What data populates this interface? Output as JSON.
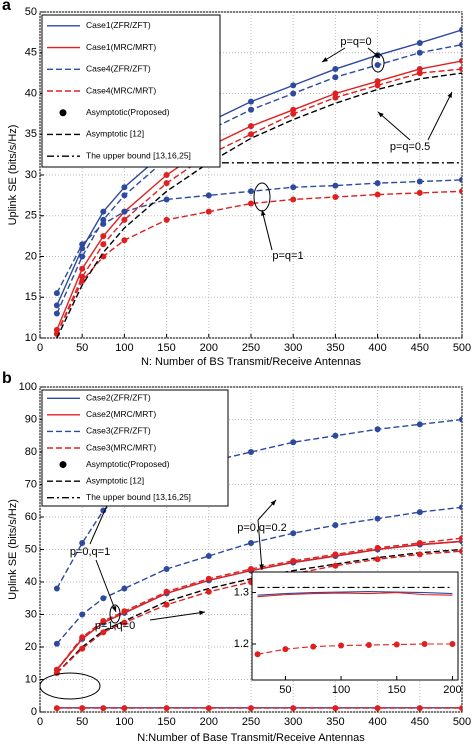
{
  "chart_data": [
    {
      "type": "line",
      "panel_label": "a",
      "xlabel": "N: Number of BS Transmit/Receive Antennas",
      "ylabel": "Uplink SE (bits/s/Hz)",
      "xlim": [
        0,
        500
      ],
      "ylim": [
        10,
        50
      ],
      "xticks": [
        0,
        50,
        100,
        150,
        200,
        250,
        300,
        350,
        400,
        450,
        500
      ],
      "yticks": [
        10,
        15,
        20,
        25,
        30,
        35,
        40,
        45,
        50
      ],
      "grid": true,
      "x": [
        20,
        50,
        75,
        100,
        150,
        200,
        250,
        300,
        350,
        400,
        450,
        500
      ],
      "legend_entries": [
        {
          "name": "Case1(ZFR/ZFT)",
          "color": "#2e4aa0",
          "dash": "solid",
          "marker": false
        },
        {
          "name": "Case1(MRC/MRT)",
          "color": "#e02020",
          "dash": "solid",
          "marker": false
        },
        {
          "name": "Case4(ZFR/ZFT)",
          "color": "#2e4aa0",
          "dash": "dashed",
          "marker": false
        },
        {
          "name": "Case4(MRC/MRT)",
          "color": "#e02020",
          "dash": "dashed",
          "marker": false
        },
        {
          "name": "Asymptotic(Proposed)",
          "color": "#000000",
          "dash": "none",
          "marker": true
        },
        {
          "name": "Asymptotic [12]",
          "color": "#000000",
          "dash": "dashed",
          "marker": false
        },
        {
          "name": "The upper bound [13,16,25]",
          "color": "#000000",
          "dash": "dashdot",
          "marker": false
        }
      ],
      "series": [
        {
          "color": "#2e4aa0",
          "dash": "solid",
          "markers": true,
          "values": [
            14,
            21,
            25.5,
            28.5,
            33,
            36.5,
            39,
            41,
            43,
            44.7,
            46.2,
            47.8
          ]
        },
        {
          "color": "#e02020",
          "dash": "solid",
          "markers": true,
          "values": [
            11,
            18.5,
            22.5,
            25.5,
            30,
            33.5,
            36,
            38,
            40,
            41.5,
            43,
            44
          ]
        },
        {
          "color": "#2e4aa0",
          "dash": "dashed",
          "markers": true,
          "values": [
            13,
            20,
            24.5,
            27.5,
            32,
            35.5,
            38,
            40,
            42,
            43.5,
            45,
            46
          ]
        },
        {
          "color": "#2e4aa0",
          "dash": "dashed",
          "markers": true,
          "values": [
            15.5,
            21.5,
            24,
            25.5,
            27,
            27.5,
            28,
            28.5,
            28.7,
            29,
            29.2,
            29.4
          ]
        },
        {
          "color": "#e02020",
          "dash": "dashed",
          "markers": true,
          "values": [
            10.5,
            17.5,
            21.5,
            24.5,
            29,
            32.5,
            35,
            37.5,
            39.5,
            41,
            42.5,
            43
          ]
        },
        {
          "color": "#e02020",
          "dash": "dashed",
          "markers": true,
          "values": [
            10.5,
            17,
            20,
            22,
            24.5,
            25.5,
            26.5,
            27,
            27.3,
            27.6,
            27.8,
            28
          ]
        },
        {
          "color": "#000000",
          "dash": "dashed",
          "markers": false,
          "values": [
            10,
            16.5,
            20.5,
            23.5,
            28,
            31.5,
            34.5,
            36.8,
            38.8,
            40.5,
            41.8,
            42.5
          ]
        },
        {
          "color": "#000000",
          "dash": "dashdot",
          "markers": false,
          "values": [
            31.5,
            31.5,
            31.5,
            31.5,
            31.5,
            31.5,
            31.5,
            31.5,
            31.5,
            31.5,
            31.5,
            31.5
          ]
        }
      ],
      "annotations": [
        {
          "text": "p=q=0"
        },
        {
          "text": "p=q=0.5"
        },
        {
          "text": "p=q=1"
        }
      ]
    },
    {
      "type": "line",
      "panel_label": "b",
      "xlabel": "N:Number of Base Transmit/Receive Antennas",
      "ylabel": "Uplink SE (bits/s/Hz)",
      "xlim": [
        0,
        500
      ],
      "ylim": [
        0,
        100
      ],
      "xticks": [
        0,
        50,
        100,
        150,
        200,
        250,
        300,
        350,
        400,
        450,
        500
      ],
      "yticks": [
        0,
        10,
        20,
        30,
        40,
        50,
        60,
        70,
        80,
        90,
        100
      ],
      "grid": true,
      "x": [
        20,
        50,
        75,
        100,
        150,
        200,
        250,
        300,
        350,
        400,
        450,
        500
      ],
      "legend_entries": [
        {
          "name": "Case2(ZFR/ZFT)",
          "color": "#2e4aa0",
          "dash": "solid",
          "marker": false
        },
        {
          "name": "Case2(MRC/MRT)",
          "color": "#e02020",
          "dash": "solid",
          "marker": false
        },
        {
          "name": "Case3(ZFR/ZFT)",
          "color": "#2e4aa0",
          "dash": "dashed",
          "marker": false
        },
        {
          "name": "Case3(MRC/MRT)",
          "color": "#e02020",
          "dash": "dashed",
          "marker": false
        },
        {
          "name": "Asymptotic(Proposed)",
          "color": "#000000",
          "dash": "none",
          "marker": true
        },
        {
          "name": "Asymptotic [12]",
          "color": "#000000",
          "dash": "dashed",
          "marker": false
        },
        {
          "name": "The upper bound [13,16,25]",
          "color": "#000000",
          "dash": "dashdot",
          "marker": false
        }
      ],
      "series": [
        {
          "color": "#2e4aa0",
          "dash": "dashed",
          "markers": true,
          "values": [
            38,
            52,
            62,
            67,
            73,
            77,
            80,
            83,
            85,
            87,
            88.5,
            90
          ]
        },
        {
          "color": "#2e4aa0",
          "dash": "dashed",
          "markers": true,
          "values": [
            21,
            30,
            35,
            38,
            44,
            48,
            52,
            55,
            57.5,
            59.5,
            61.5,
            63
          ]
        },
        {
          "color": "#2e4aa0",
          "dash": "solid",
          "markers": true,
          "values": [
            13,
            22.5,
            27.5,
            30.5,
            36.5,
            40.5,
            43.5,
            46,
            48,
            50,
            51.5,
            52.5
          ]
        },
        {
          "color": "#e02020",
          "dash": "solid",
          "markers": false,
          "values": [
            13,
            22.5,
            27.5,
            30.5,
            36.5,
            40.5,
            43.5,
            46,
            48,
            50,
            51.5,
            52.5
          ]
        },
        {
          "color": "#e02020",
          "dash": "dashed",
          "markers": true,
          "values": [
            13,
            23,
            28,
            31,
            37,
            41,
            44,
            46.5,
            48.5,
            50.5,
            52,
            53.5
          ]
        },
        {
          "color": "#000000",
          "dash": "dashed",
          "markers": false,
          "values": [
            12,
            20,
            25,
            28,
            34,
            38,
            41,
            43.5,
            45.5,
            47.5,
            49,
            50
          ]
        },
        {
          "color": "#e02020",
          "dash": "dashed",
          "markers": true,
          "values": [
            12,
            19.5,
            24.5,
            27.5,
            33,
            37,
            40,
            42.5,
            45,
            47,
            48.5,
            49.5
          ]
        },
        {
          "color": "#2e4aa0",
          "dash": "solid",
          "markers": false,
          "values": [
            1.3,
            1.3,
            1.3,
            1.3,
            1.3,
            1.3,
            1.3,
            1.3,
            1.3,
            1.3,
            1.3,
            1.3
          ]
        },
        {
          "color": "#e02020",
          "dash": "dashed",
          "markers": true,
          "values": [
            1.2,
            1.2,
            1.2,
            1.2,
            1.2,
            1.2,
            1.2,
            1.2,
            1.2,
            1.2,
            1.2,
            1.2
          ]
        }
      ],
      "annotations": [
        {
          "text": "p=0,q=1"
        },
        {
          "text": "p=0,q=0.2"
        },
        {
          "text": "p=1,q=0"
        }
      ],
      "inset": {
        "xlim": [
          20,
          205
        ],
        "ylim": [
          1.13,
          1.34
        ],
        "xticks": [
          50,
          100,
          150,
          200
        ],
        "yticks": [
          1.2,
          1.3
        ],
        "x": [
          25,
          50,
          75,
          100,
          125,
          150,
          175,
          200
        ],
        "series": [
          {
            "color": "#000000",
            "dash": "dashdot",
            "markers": false,
            "values": [
              1.31,
              1.31,
              1.31,
              1.31,
              1.31,
              1.31,
              1.31,
              1.31
            ]
          },
          {
            "color": "#2e4aa0",
            "dash": "solid",
            "markers": false,
            "values": [
              1.295,
              1.298,
              1.3,
              1.301,
              1.302,
              1.301,
              1.3,
              1.298
            ]
          },
          {
            "color": "#e02020",
            "dash": "solid",
            "markers": false,
            "values": [
              1.292,
              1.296,
              1.298,
              1.299,
              1.298,
              1.3,
              1.296,
              1.295
            ]
          },
          {
            "color": "#e02020",
            "dash": "dashed",
            "markers": true,
            "values": [
              1.18,
              1.19,
              1.195,
              1.197,
              1.198,
              1.199,
              1.2,
              1.2
            ]
          }
        ]
      }
    }
  ]
}
